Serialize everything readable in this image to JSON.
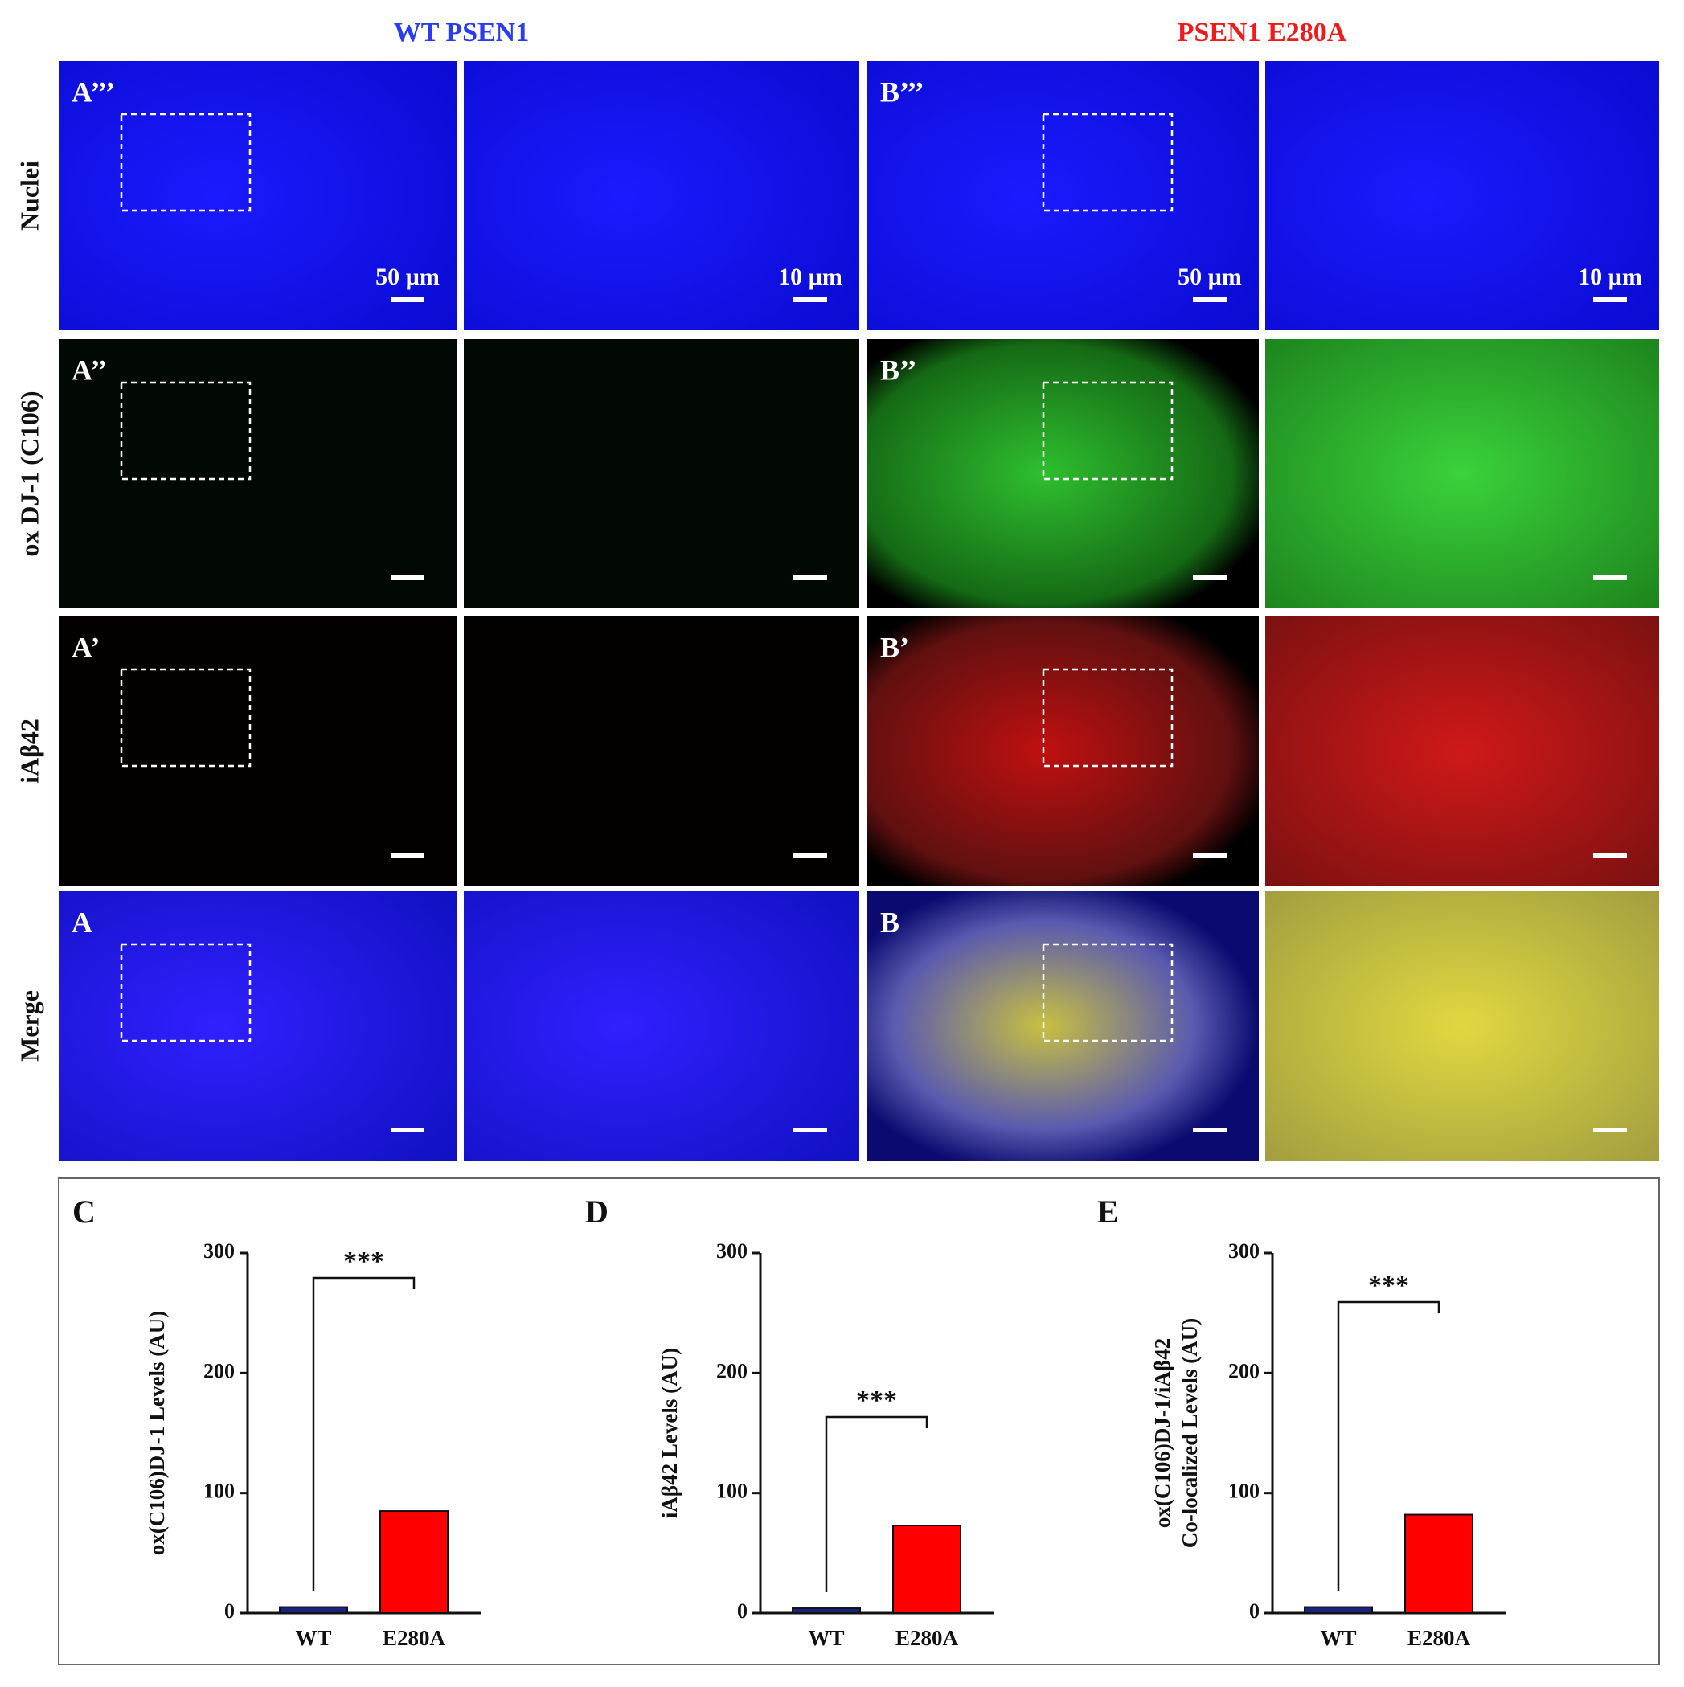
{
  "figure": {
    "columns": [
      "WT PSEN1",
      "PSEN1 E280A"
    ],
    "rows": [
      "Nuclei",
      "ox DJ-1 (C106)",
      "iAβ42",
      "Merge"
    ],
    "panel_labels": [
      "A’’’",
      "B’’’",
      "A’’",
      "B’’",
      "A’",
      "B’",
      "A",
      "B"
    ],
    "scale_bars": [
      "50 µm",
      "10 µm",
      "50 µm",
      "10 µm"
    ]
  },
  "chart_data": [
    {
      "type": "bar",
      "label": "C",
      "y_label": [
        "ox(C106)DJ-1 Levels (AU)"
      ],
      "categories": [
        "WT",
        "E280A"
      ],
      "values": [
        5,
        85
      ],
      "colors": [
        "#1a237e",
        "#ff0000"
      ],
      "ylim": [
        0,
        300
      ],
      "yticks": [
        0,
        100,
        200,
        300
      ],
      "annotation": "***"
    },
    {
      "type": "bar",
      "label": "D",
      "y_label": [
        "iAβ42 Levels (AU)"
      ],
      "categories": [
        "WT",
        "E280A"
      ],
      "values": [
        4,
        73
      ],
      "colors": [
        "#1a237e",
        "#ff0000"
      ],
      "ylim": [
        0,
        300
      ],
      "yticks": [
        0,
        100,
        200,
        300
      ],
      "annotation": "***"
    },
    {
      "type": "bar",
      "label": "E",
      "y_label": [
        "ox(C106)DJ-1/iAβ42",
        "Co-localized Levels (AU)"
      ],
      "categories": [
        "WT",
        "E280A"
      ],
      "values": [
        5,
        82
      ],
      "colors": [
        "#1a237e",
        "#ff0000"
      ],
      "ylim": [
        0,
        300
      ],
      "yticks": [
        0,
        100,
        200,
        300
      ],
      "annotation": "***"
    }
  ]
}
